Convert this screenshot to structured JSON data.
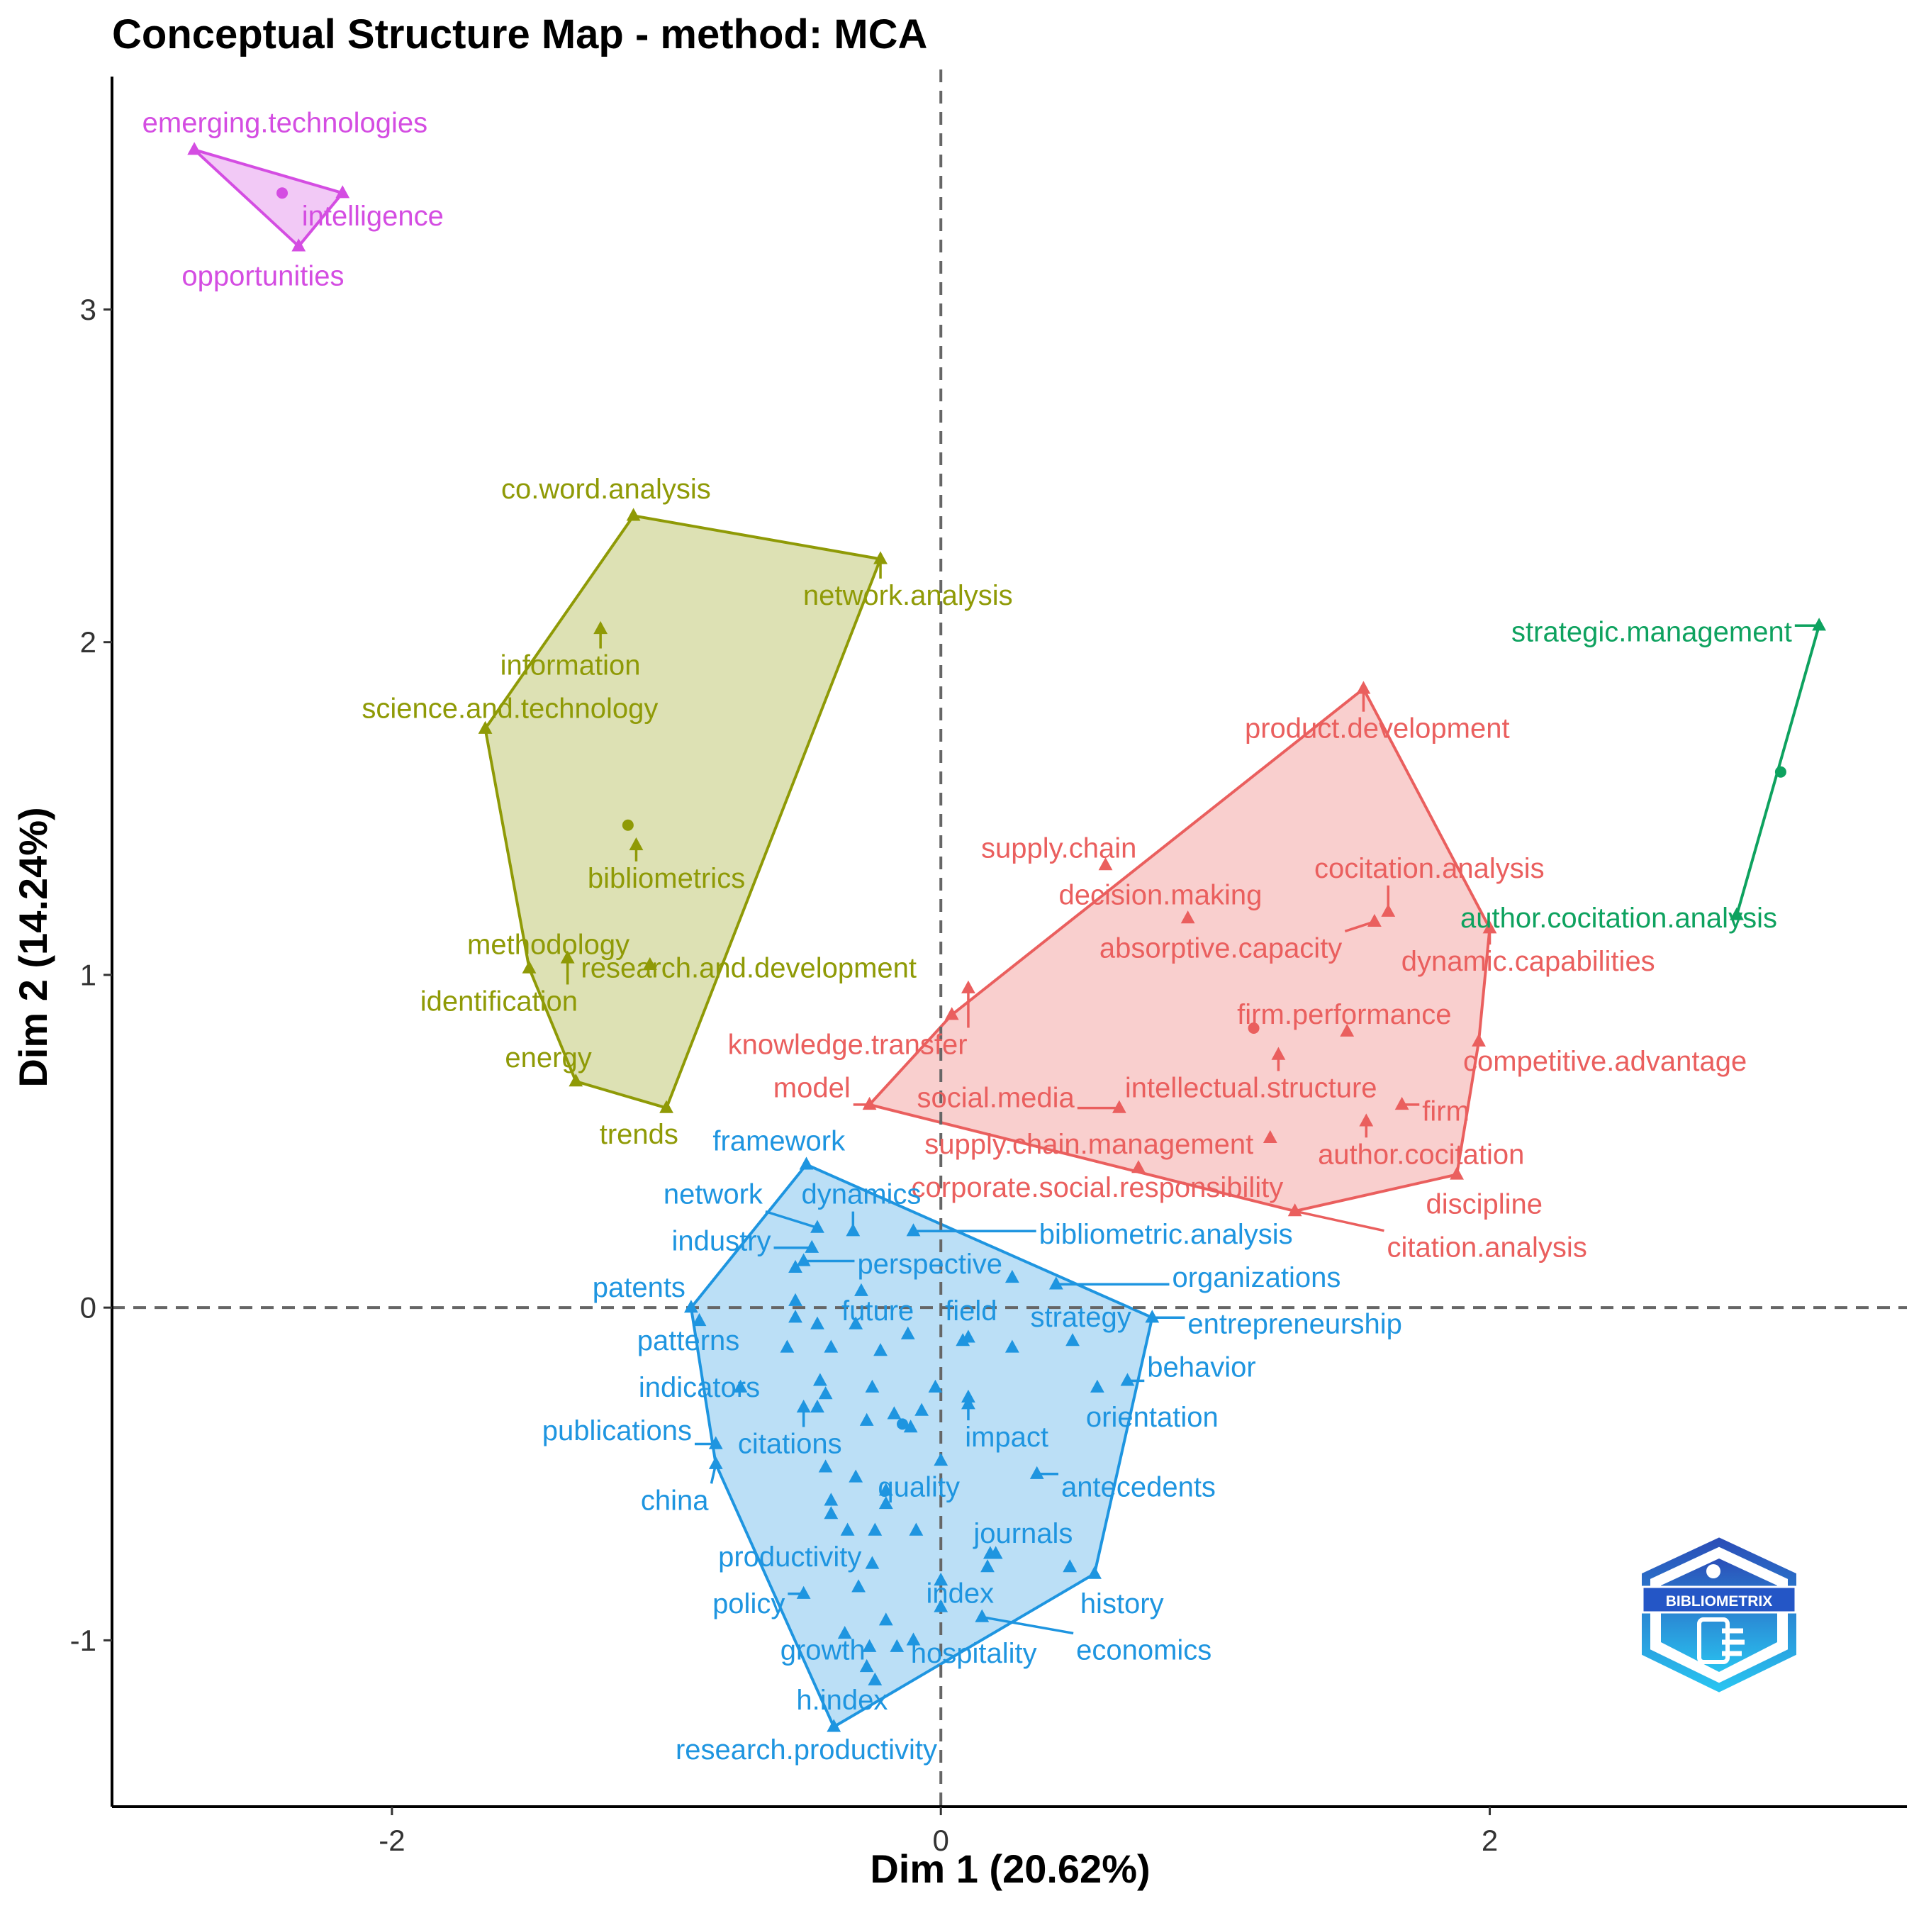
{
  "chart_data": {
    "type": "scatter",
    "title": "Conceptual Structure Map - method: MCA",
    "xlabel": "Dim 1 (20.62%)",
    "ylabel": "Dim 2 (14.24%)",
    "xlim": [
      -3.02,
      3.52
    ],
    "ylim": [
      -1.5,
      3.7
    ],
    "x_ticks": [
      -2,
      0,
      2
    ],
    "y_ticks": [
      -1,
      0,
      1,
      2,
      3
    ],
    "reference_lines": {
      "x": 0,
      "y": 0,
      "style": "dashed"
    },
    "grid": false,
    "logo": "BIBLIOMETRIX",
    "clusters": [
      {
        "color": "#D44DE2",
        "centroid": [
          -2.4,
          3.35
        ],
        "hull": [
          [
            -2.72,
            3.48
          ],
          [
            -2.18,
            3.35
          ],
          [
            -2.34,
            3.19
          ]
        ],
        "points": [
          {
            "label": "emerging.technologies",
            "x": -2.72,
            "y": 3.48,
            "lx": -2.39,
            "ly": 3.56
          },
          {
            "label": "intelligence",
            "x": -2.18,
            "y": 3.35,
            "lx": -2.07,
            "ly": 3.28
          },
          {
            "label": "opportunities",
            "x": -2.34,
            "y": 3.19,
            "lx": -2.47,
            "ly": 3.1
          }
        ]
      },
      {
        "color": "#8F9A06",
        "centroid": [
          -1.14,
          1.45
        ],
        "hull": [
          [
            -1.12,
            2.38
          ],
          [
            -0.22,
            2.25
          ],
          [
            -1.0,
            0.6
          ],
          [
            -1.33,
            0.68
          ],
          [
            -1.5,
            1.02
          ],
          [
            -1.66,
            1.74
          ]
        ],
        "points": [
          {
            "label": "co.word.analysis",
            "x": -1.12,
            "y": 2.38,
            "lx": -1.22,
            "ly": 2.46
          },
          {
            "label": "network.analysis",
            "x": -0.22,
            "y": 2.25,
            "lx": -0.12,
            "ly": 2.14
          },
          {
            "label": "information",
            "x": -1.24,
            "y": 2.04,
            "lx": -1.35,
            "ly": 1.93
          },
          {
            "label": "science.and.technology",
            "x": -1.66,
            "y": 1.74,
            "lx": -1.57,
            "ly": 1.8
          },
          {
            "label": "bibliometrics",
            "x": -1.11,
            "y": 1.39,
            "lx": -1.0,
            "ly": 1.29
          },
          {
            "label": "methodology",
            "x": -1.5,
            "y": 1.02,
            "lx": -1.43,
            "ly": 1.09
          },
          {
            "label": "research.and.development",
            "x": -1.06,
            "y": 1.03,
            "lx": -0.7,
            "ly": 1.02
          },
          {
            "label": "identification",
            "x": -1.36,
            "y": 1.05,
            "lx": -1.61,
            "ly": 0.92
          },
          {
            "label": "energy",
            "x": -1.33,
            "y": 0.68,
            "lx": -1.43,
            "ly": 0.75
          },
          {
            "label": "trends",
            "x": -1.0,
            "y": 0.6,
            "lx": -1.1,
            "ly": 0.52
          }
        ]
      },
      {
        "color": "#EA5F5E",
        "centroid": [
          1.14,
          0.84
        ],
        "hull": [
          [
            1.54,
            1.86
          ],
          [
            2.0,
            1.14
          ],
          [
            1.96,
            0.8
          ],
          [
            1.88,
            0.4
          ],
          [
            1.29,
            0.29
          ],
          [
            -0.26,
            0.61
          ],
          [
            0.04,
            0.88
          ]
        ],
        "points": [
          {
            "label": "product.development",
            "x": 1.54,
            "y": 1.86,
            "lx": 1.59,
            "ly": 1.74
          },
          {
            "label": "supply.chain",
            "x": 0.6,
            "y": 1.33,
            "lx": 0.43,
            "ly": 1.38
          },
          {
            "label": "cocitation.analysis",
            "x": 1.63,
            "y": 1.19,
            "lx": 1.78,
            "ly": 1.32
          },
          {
            "label": "decision.making",
            "x": 0.9,
            "y": 1.17,
            "lx": 0.8,
            "ly": 1.24
          },
          {
            "label": "absorptive.capacity",
            "x": 1.58,
            "y": 1.16,
            "lx": 1.02,
            "ly": 1.08
          },
          {
            "label": "dynamic.capabilities",
            "x": 2.0,
            "y": 1.14,
            "lx": 2.14,
            "ly": 1.04
          },
          {
            "label": "firm.performance",
            "x": 1.48,
            "y": 0.83,
            "lx": 1.47,
            "ly": 0.88
          },
          {
            "label": "knowledge.transfer",
            "x": 0.1,
            "y": 0.96,
            "lx": -0.34,
            "ly": 0.79
          },
          {
            "label": "competitive.advantage",
            "x": 1.96,
            "y": 0.8,
            "lx": 2.42,
            "ly": 0.74
          },
          {
            "label": "intellectual.structure",
            "x": 1.23,
            "y": 0.76,
            "lx": 1.13,
            "ly": 0.66
          },
          {
            "label": "model",
            "x": -0.26,
            "y": 0.61,
            "lx": -0.47,
            "ly": 0.66
          },
          {
            "label": "social.media",
            "x": 0.65,
            "y": 0.6,
            "lx": 0.2,
            "ly": 0.63
          },
          {
            "label": "firm",
            "x": 1.68,
            "y": 0.61,
            "lx": 1.84,
            "ly": 0.59
          },
          {
            "label": "author.cocitation",
            "x": 1.55,
            "y": 0.56,
            "lx": 1.75,
            "ly": 0.46
          },
          {
            "label": "supply.chain.management",
            "x": 1.2,
            "y": 0.51,
            "lx": 0.54,
            "ly": 0.49
          },
          {
            "label": "corporate.social.responsibility",
            "x": 0.72,
            "y": 0.42,
            "lx": 0.57,
            "ly": 0.36
          },
          {
            "label": "discipline",
            "x": 1.88,
            "y": 0.4,
            "lx": 1.98,
            "ly": 0.31
          },
          {
            "label": "citation.analysis",
            "x": 1.29,
            "y": 0.29,
            "lx": 1.99,
            "ly": 0.18
          },
          {
            "label": "",
            "x": 0.04,
            "y": 0.88,
            "lx": 0.04,
            "ly": 0.88
          }
        ]
      },
      {
        "color": "#0EA25F",
        "centroid": [
          3.06,
          1.61
        ],
        "hull": [
          [
            3.2,
            2.05
          ],
          [
            2.9,
            1.18
          ]
        ],
        "points": [
          {
            "label": "strategic.management",
            "x": 3.2,
            "y": 2.05,
            "lx": 2.59,
            "ly": 2.03
          },
          {
            "label": "author.cocitation.analysis",
            "x": 2.9,
            "y": 1.18,
            "lx": 2.47,
            "ly": 1.17
          }
        ]
      },
      {
        "color": "#1E95E0",
        "centroid": [
          -0.14,
          -0.35
        ],
        "hull": [
          [
            -0.49,
            0.43
          ],
          [
            0.77,
            -0.03
          ],
          [
            0.56,
            -0.8
          ],
          [
            -0.39,
            -1.26
          ],
          [
            -0.82,
            -0.47
          ],
          [
            -0.91,
            0.0
          ]
        ],
        "points": [
          {
            "label": "framework",
            "x": -0.49,
            "y": 0.43,
            "lx": -0.59,
            "ly": 0.5
          },
          {
            "label": "network",
            "x": -0.45,
            "y": 0.24,
            "lx": -0.83,
            "ly": 0.34
          },
          {
            "label": "dynamics",
            "x": -0.32,
            "y": 0.23,
            "lx": -0.29,
            "ly": 0.34
          },
          {
            "label": "industry",
            "x": -0.47,
            "y": 0.18,
            "lx": -0.8,
            "ly": 0.2
          },
          {
            "label": "bibliometric.analysis",
            "x": -0.1,
            "y": 0.23,
            "lx": 0.82,
            "ly": 0.22
          },
          {
            "label": "perspective",
            "x": -0.5,
            "y": 0.14,
            "lx": -0.04,
            "ly": 0.13
          },
          {
            "label": "organizations",
            "x": 0.42,
            "y": 0.07,
            "lx": 1.15,
            "ly": 0.09
          },
          {
            "label": "patents",
            "x": -0.91,
            "y": 0.0,
            "lx": -1.1,
            "ly": 0.06
          },
          {
            "label": "future",
            "x": -0.31,
            "y": -0.05,
            "lx": -0.23,
            "ly": -0.01
          },
          {
            "label": "field",
            "x": 0.1,
            "y": -0.09,
            "lx": 0.11,
            "ly": -0.01
          },
          {
            "label": "strategy",
            "x": 0.48,
            "y": -0.1,
            "lx": 0.51,
            "ly": -0.03
          },
          {
            "label": "entrepreneurship",
            "x": 0.77,
            "y": -0.03,
            "lx": 1.29,
            "ly": -0.05
          },
          {
            "label": "patterns",
            "x": -0.88,
            "y": -0.04,
            "lx": -0.92,
            "ly": -0.1
          },
          {
            "label": "behavior",
            "x": 0.68,
            "y": -0.22,
            "lx": 0.95,
            "ly": -0.18
          },
          {
            "label": "indicators",
            "x": -0.73,
            "y": -0.24,
            "lx": -0.88,
            "ly": -0.24
          },
          {
            "label": "orientation",
            "x": 0.57,
            "y": -0.24,
            "lx": 0.77,
            "ly": -0.33
          },
          {
            "label": "publications",
            "x": -0.82,
            "y": -0.41,
            "lx": -1.18,
            "ly": -0.37
          },
          {
            "label": "citations",
            "x": -0.5,
            "y": -0.3,
            "lx": -0.55,
            "ly": -0.41
          },
          {
            "label": "impact",
            "x": 0.1,
            "y": -0.27,
            "lx": 0.24,
            "ly": -0.39
          },
          {
            "label": "china",
            "x": -0.82,
            "y": -0.47,
            "lx": -0.97,
            "ly": -0.58
          },
          {
            "label": "quality",
            "x": -0.2,
            "y": -0.55,
            "lx": -0.08,
            "ly": -0.54
          },
          {
            "label": "antecedents",
            "x": 0.35,
            "y": -0.5,
            "lx": 0.72,
            "ly": -0.54
          },
          {
            "label": "journals",
            "x": 0.2,
            "y": -0.74,
            "lx": 0.3,
            "ly": -0.68
          },
          {
            "label": "productivity",
            "x": -0.34,
            "y": -0.67,
            "lx": -0.55,
            "ly": -0.75
          },
          {
            "label": "policy",
            "x": -0.5,
            "y": -0.86,
            "lx": -0.7,
            "ly": -0.89
          },
          {
            "label": "index",
            "x": 0.0,
            "y": -0.9,
            "lx": 0.07,
            "ly": -0.86
          },
          {
            "label": "history",
            "x": 0.56,
            "y": -0.8,
            "lx": 0.66,
            "ly": -0.89
          },
          {
            "label": "economics",
            "x": 0.15,
            "y": -0.93,
            "lx": 0.74,
            "ly": -1.03
          },
          {
            "label": "growth",
            "x": -0.26,
            "y": -1.02,
            "lx": -0.43,
            "ly": -1.03
          },
          {
            "label": "hospitality",
            "x": -0.1,
            "y": -1.0,
            "lx": 0.12,
            "ly": -1.04
          },
          {
            "label": "h.index",
            "x": -0.24,
            "y": -1.12,
            "lx": -0.36,
            "ly": -1.18
          },
          {
            "label": "research.productivity",
            "x": -0.39,
            "y": -1.26,
            "lx": -0.49,
            "ly": -1.33
          },
          {
            "label": "",
            "x": -0.53,
            "y": 0.12,
            "lx": -0.53,
            "ly": 0.12
          },
          {
            "label": "",
            "x": -0.53,
            "y": 0.02,
            "lx": -0.53,
            "ly": 0.02
          },
          {
            "label": "",
            "x": -0.53,
            "y": -0.03,
            "lx": -0.53,
            "ly": -0.03
          },
          {
            "label": "",
            "x": -0.45,
            "y": -0.05,
            "lx": -0.45,
            "ly": -0.05
          },
          {
            "label": "",
            "x": -0.29,
            "y": 0.05,
            "lx": -0.29,
            "ly": 0.05
          },
          {
            "label": "",
            "x": -0.12,
            "y": -0.08,
            "lx": -0.12,
            "ly": -0.08
          },
          {
            "label": "",
            "x": -0.56,
            "y": -0.12,
            "lx": -0.56,
            "ly": -0.12
          },
          {
            "label": "",
            "x": -0.4,
            "y": -0.12,
            "lx": -0.4,
            "ly": -0.12
          },
          {
            "label": "",
            "x": -0.22,
            "y": -0.13,
            "lx": -0.22,
            "ly": -0.13
          },
          {
            "label": "",
            "x": 0.08,
            "y": -0.1,
            "lx": 0.08,
            "ly": -0.1
          },
          {
            "label": "",
            "x": 0.26,
            "y": -0.12,
            "lx": 0.26,
            "ly": -0.12
          },
          {
            "label": "",
            "x": 0.26,
            "y": 0.09,
            "lx": 0.26,
            "ly": 0.09
          },
          {
            "label": "",
            "x": -0.44,
            "y": -0.22,
            "lx": -0.44,
            "ly": -0.22
          },
          {
            "label": "",
            "x": -0.42,
            "y": -0.26,
            "lx": -0.42,
            "ly": -0.26
          },
          {
            "label": "",
            "x": -0.25,
            "y": -0.24,
            "lx": -0.25,
            "ly": -0.24
          },
          {
            "label": "",
            "x": -0.02,
            "y": -0.24,
            "lx": -0.02,
            "ly": -0.24
          },
          {
            "label": "",
            "x": 0.1,
            "y": -0.29,
            "lx": 0.1,
            "ly": -0.29
          },
          {
            "label": "",
            "x": -0.45,
            "y": -0.3,
            "lx": -0.45,
            "ly": -0.3
          },
          {
            "label": "",
            "x": -0.27,
            "y": -0.34,
            "lx": -0.27,
            "ly": -0.34
          },
          {
            "label": "",
            "x": -0.17,
            "y": -0.32,
            "lx": -0.17,
            "ly": -0.32
          },
          {
            "label": "",
            "x": -0.07,
            "y": -0.31,
            "lx": -0.07,
            "ly": -0.31
          },
          {
            "label": "",
            "x": -0.11,
            "y": -0.36,
            "lx": -0.11,
            "ly": -0.36
          },
          {
            "label": "",
            "x": -0.42,
            "y": -0.48,
            "lx": -0.42,
            "ly": -0.48
          },
          {
            "label": "",
            "x": -0.31,
            "y": -0.51,
            "lx": -0.31,
            "ly": -0.51
          },
          {
            "label": "",
            "x": 0.0,
            "y": -0.46,
            "lx": 0.0,
            "ly": -0.46
          },
          {
            "label": "",
            "x": -0.4,
            "y": -0.58,
            "lx": -0.4,
            "ly": -0.58
          },
          {
            "label": "",
            "x": -0.4,
            "y": -0.62,
            "lx": -0.4,
            "ly": -0.62
          },
          {
            "label": "",
            "x": -0.2,
            "y": -0.59,
            "lx": -0.2,
            "ly": -0.59
          },
          {
            "label": "",
            "x": -0.24,
            "y": -0.67,
            "lx": -0.24,
            "ly": -0.67
          },
          {
            "label": "",
            "x": -0.09,
            "y": -0.67,
            "lx": -0.09,
            "ly": -0.67
          },
          {
            "label": "",
            "x": -0.25,
            "y": -0.77,
            "lx": -0.25,
            "ly": -0.77
          },
          {
            "label": "",
            "x": -0.3,
            "y": -0.84,
            "lx": -0.3,
            "ly": -0.84
          },
          {
            "label": "",
            "x": -0.2,
            "y": -0.94,
            "lx": -0.2,
            "ly": -0.94
          },
          {
            "label": "",
            "x": 0.17,
            "y": -0.78,
            "lx": 0.17,
            "ly": -0.78
          },
          {
            "label": "",
            "x": 0.0,
            "y": -0.82,
            "lx": 0.0,
            "ly": -0.82
          },
          {
            "label": "",
            "x": 0.47,
            "y": -0.78,
            "lx": 0.47,
            "ly": -0.78
          },
          {
            "label": "",
            "x": 0.18,
            "y": -0.74,
            "lx": 0.18,
            "ly": -0.74
          },
          {
            "label": "",
            "x": -0.16,
            "y": -1.02,
            "lx": -0.16,
            "ly": -1.02
          },
          {
            "label": "",
            "x": -0.35,
            "y": -0.98,
            "lx": -0.35,
            "ly": -0.98
          },
          {
            "label": "",
            "x": -0.27,
            "y": -1.08,
            "lx": -0.27,
            "ly": -1.08
          }
        ]
      }
    ]
  }
}
